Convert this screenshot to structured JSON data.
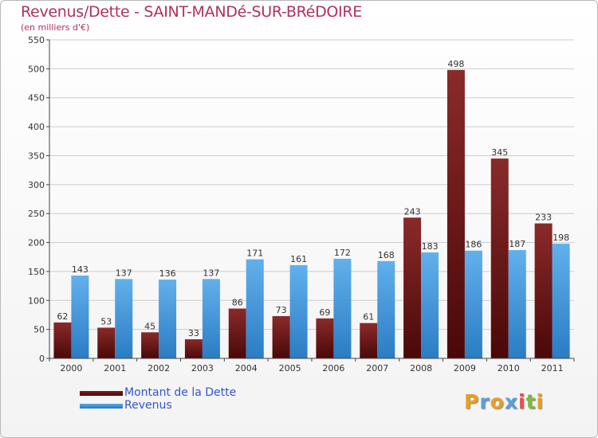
{
  "title": "Revenus/Dette - SAINT-MANDé-SUR-BRéDOIRE",
  "subtitle": "(en milliers d'€)",
  "logo": {
    "text": "Proxiti",
    "colors": [
      "#e8a020",
      "#5aa0d8",
      "#e8a020",
      "#5aa0d8",
      "#e85050",
      "#80b840",
      "#e8a020"
    ]
  },
  "colors": {
    "dette": "#7a1a1a",
    "dette_dark": "#4a0a0a",
    "revenus": "#5aa8e6",
    "revenus_dark": "#2a78be",
    "grid": "#cccccc",
    "axis": "#444444"
  },
  "chart_data": {
    "type": "bar",
    "categories": [
      "2000",
      "2001",
      "2002",
      "2003",
      "2004",
      "2005",
      "2006",
      "2007",
      "2008",
      "2009",
      "2010",
      "2011"
    ],
    "series": [
      {
        "name": "Montant de la Dette",
        "values": [
          62,
          53,
          45,
          33,
          86,
          73,
          69,
          61,
          243,
          498,
          345,
          233
        ]
      },
      {
        "name": "Revenus",
        "values": [
          143,
          137,
          136,
          137,
          171,
          161,
          172,
          168,
          183,
          186,
          187,
          198
        ]
      }
    ],
    "ylim": [
      0,
      550
    ],
    "yticks": [
      0,
      50,
      100,
      150,
      200,
      250,
      300,
      350,
      400,
      450,
      500,
      550
    ],
    "grid": true,
    "legend": "bottom-left"
  }
}
